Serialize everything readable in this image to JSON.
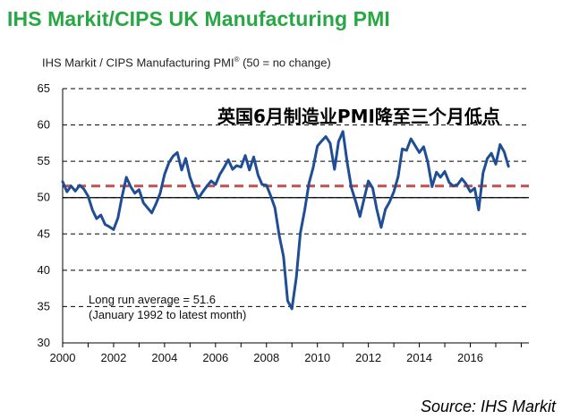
{
  "header": {
    "title": "IHS Markit/CIPS UK Manufacturing PMI",
    "subtitle": "IHS Markit / CIPS Manufacturing PMI",
    "subtitle_mark": "®",
    "subtitle_note": " (50 = no change)"
  },
  "overlay_text": "英国6月制造业PMI降至三个月低点",
  "annotation": {
    "line1": "Long run average = 51.6",
    "line2": "(January 1992 to latest month)"
  },
  "source": "Source: IHS Markit",
  "colors": {
    "title": "#27a844",
    "series": "#1f4e96",
    "average": "#c0504d",
    "grid": "#000000"
  },
  "chart_data": {
    "type": "line",
    "title": "IHS Markit/CIPS UK Manufacturing PMI",
    "ylabel": "IHS Markit / CIPS Manufacturing PMI® (50 = no change)",
    "xlabel": "",
    "ylim": [
      30,
      65
    ],
    "xlim": [
      2000,
      2018.3
    ],
    "yticks": [
      30,
      35,
      40,
      45,
      50,
      55,
      60,
      65
    ],
    "xticks": [
      "2000",
      "2002",
      "2004",
      "2006",
      "2008",
      "2010",
      "2012",
      "2014",
      "2016"
    ],
    "grid": "horizontal dashed",
    "reference_lines": [
      {
        "name": "Long run average",
        "value": 51.6,
        "style": "dashed"
      },
      {
        "name": "no change",
        "value": 50,
        "style": "solid"
      }
    ],
    "series": [
      {
        "values": [
          [
            2000.0,
            52.2
          ],
          [
            2000.17,
            50.8
          ],
          [
            2000.33,
            51.6
          ],
          [
            2000.5,
            50.9
          ],
          [
            2000.67,
            51.7
          ],
          [
            2000.83,
            51.2
          ],
          [
            2001.0,
            50.2
          ],
          [
            2001.17,
            48.3
          ],
          [
            2001.33,
            47.1
          ],
          [
            2001.5,
            47.6
          ],
          [
            2001.67,
            46.3
          ],
          [
            2001.83,
            46.0
          ],
          [
            2002.0,
            45.6
          ],
          [
            2002.17,
            47.2
          ],
          [
            2002.33,
            50.1
          ],
          [
            2002.5,
            52.8
          ],
          [
            2002.67,
            51.5
          ],
          [
            2002.83,
            50.6
          ],
          [
            2003.0,
            51.1
          ],
          [
            2003.17,
            49.3
          ],
          [
            2003.33,
            48.6
          ],
          [
            2003.5,
            47.9
          ],
          [
            2003.67,
            49.2
          ],
          [
            2003.83,
            50.6
          ],
          [
            2004.0,
            53.2
          ],
          [
            2004.17,
            54.8
          ],
          [
            2004.33,
            55.7
          ],
          [
            2004.5,
            56.2
          ],
          [
            2004.67,
            53.8
          ],
          [
            2004.83,
            55.4
          ],
          [
            2005.0,
            52.8
          ],
          [
            2005.17,
            51.2
          ],
          [
            2005.33,
            49.9
          ],
          [
            2005.5,
            50.8
          ],
          [
            2005.67,
            51.6
          ],
          [
            2005.83,
            52.3
          ],
          [
            2006.0,
            51.8
          ],
          [
            2006.17,
            53.2
          ],
          [
            2006.33,
            54.1
          ],
          [
            2006.5,
            55.2
          ],
          [
            2006.67,
            53.9
          ],
          [
            2006.83,
            54.4
          ],
          [
            2007.0,
            54.2
          ],
          [
            2007.17,
            55.8
          ],
          [
            2007.33,
            53.8
          ],
          [
            2007.5,
            55.6
          ],
          [
            2007.67,
            53.1
          ],
          [
            2007.83,
            51.8
          ],
          [
            2008.0,
            51.7
          ],
          [
            2008.17,
            50.2
          ],
          [
            2008.33,
            48.6
          ],
          [
            2008.5,
            44.8
          ],
          [
            2008.67,
            41.9
          ],
          [
            2008.83,
            35.8
          ],
          [
            2009.0,
            34.7
          ],
          [
            2009.17,
            39.0
          ],
          [
            2009.33,
            45.1
          ],
          [
            2009.5,
            48.3
          ],
          [
            2009.67,
            52.0
          ],
          [
            2009.83,
            54.1
          ],
          [
            2010.0,
            57.1
          ],
          [
            2010.17,
            57.8
          ],
          [
            2010.33,
            58.4
          ],
          [
            2010.5,
            57.5
          ],
          [
            2010.67,
            53.9
          ],
          [
            2010.83,
            57.7
          ],
          [
            2011.0,
            59.1
          ],
          [
            2011.17,
            54.8
          ],
          [
            2011.33,
            51.4
          ],
          [
            2011.5,
            49.5
          ],
          [
            2011.67,
            47.4
          ],
          [
            2011.83,
            49.8
          ],
          [
            2012.0,
            52.3
          ],
          [
            2012.17,
            51.3
          ],
          [
            2012.33,
            48.4
          ],
          [
            2012.5,
            45.9
          ],
          [
            2012.67,
            48.4
          ],
          [
            2012.83,
            49.4
          ],
          [
            2013.0,
            50.8
          ],
          [
            2013.17,
            52.9
          ],
          [
            2013.33,
            56.7
          ],
          [
            2013.5,
            56.5
          ],
          [
            2013.67,
            58.1
          ],
          [
            2013.83,
            57.2
          ],
          [
            2014.0,
            56.2
          ],
          [
            2014.17,
            57.0
          ],
          [
            2014.33,
            54.9
          ],
          [
            2014.5,
            51.5
          ],
          [
            2014.67,
            53.5
          ],
          [
            2014.83,
            52.8
          ],
          [
            2015.0,
            53.6
          ],
          [
            2015.17,
            52.1
          ],
          [
            2015.33,
            51.6
          ],
          [
            2015.5,
            51.8
          ],
          [
            2015.67,
            52.6
          ],
          [
            2015.83,
            51.9
          ],
          [
            2016.0,
            50.8
          ],
          [
            2016.17,
            51.3
          ],
          [
            2016.33,
            48.3
          ],
          [
            2016.5,
            53.4
          ],
          [
            2016.67,
            55.4
          ],
          [
            2016.83,
            56.1
          ],
          [
            2017.0,
            54.6
          ],
          [
            2017.17,
            57.3
          ],
          [
            2017.33,
            56.3
          ],
          [
            2017.5,
            54.3
          ]
        ]
      }
    ]
  }
}
